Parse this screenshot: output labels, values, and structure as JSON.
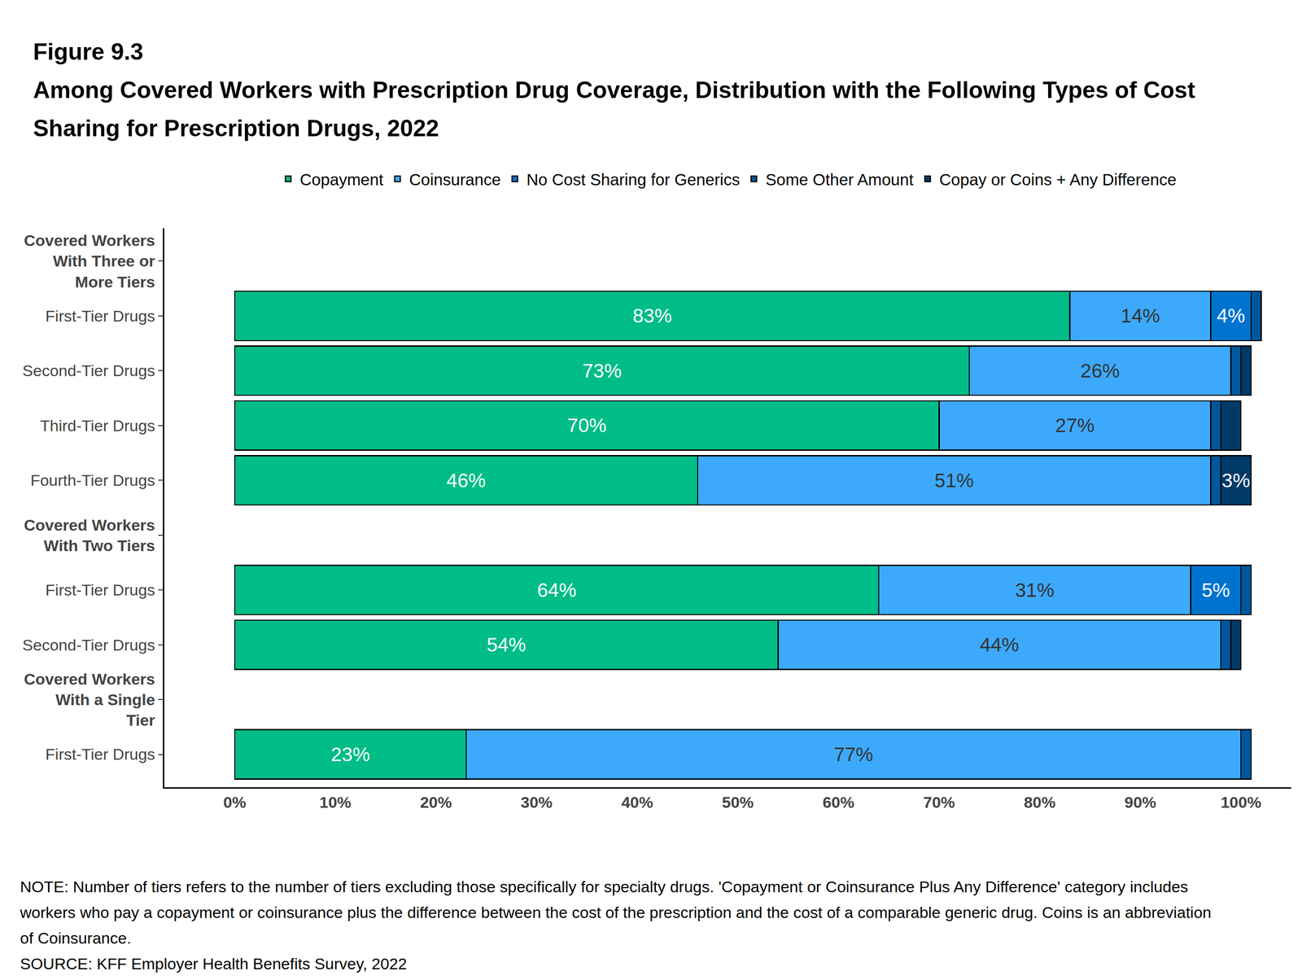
{
  "chart_data": {
    "type": "bar",
    "title": "Figure 9.3",
    "subtitle": "Among Covered Workers with Prescription Drug Coverage, Distribution with the Following Types of Cost Sharing for Prescription Drugs, 2022",
    "annotations": [
      "NOTE: Number of tiers refers to the number of tiers excluding those specifically for specialty drugs. 'Copayment or Coinsurance Plus Any Difference' category includes workers who pay a copayment or coinsurance plus the difference between the cost of the prescription and the cost of a comparable generic drug.  Coins is an abbreviation of Coinsurance.",
      "SOURCE: KFF Employer Health Benefits Survey, 2022"
    ],
    "orientation": "horizontal",
    "stacked": true,
    "data_labels": true,
    "grid": false,
    "legend": "top",
    "categories": [
      "Covered Workers With Three or More Tiers",
      "First-Tier Drugs",
      "Second-Tier Drugs",
      "Third-Tier Drugs",
      "Fourth-Tier Drugs",
      "Covered Workers With Two Tiers",
      "First-Tier Drugs",
      "Second-Tier Drugs",
      "Covered Workers With a Single Tier",
      "First-Tier Drugs"
    ],
    "series": [
      {
        "name": "Copayment",
        "color": "#00bc87",
        "values": [
          null,
          83,
          73,
          70,
          46,
          null,
          64,
          54,
          null,
          23
        ],
        "value_labels": [
          null,
          "83%",
          "73%",
          "70%",
          "46%",
          null,
          "64%",
          "54%",
          null,
          "23%"
        ]
      },
      {
        "name": "Coinsurance",
        "color": "#3da9fc",
        "values": [
          null,
          14,
          26,
          27,
          51,
          null,
          31,
          44,
          null,
          77
        ],
        "value_labels": [
          null,
          "14%",
          "26%",
          "27%",
          "51%",
          null,
          "31%",
          "44%",
          null,
          "77%"
        ]
      },
      {
        "name": "No Cost Sharing for Generics",
        "color": "#0073cf",
        "values": [
          null,
          4,
          null,
          null,
          null,
          null,
          5,
          null,
          null,
          null
        ],
        "value_labels": [
          null,
          "4%",
          null,
          null,
          null,
          null,
          "5%",
          null,
          null,
          null
        ]
      },
      {
        "name": "Some Other Amount",
        "color": "#00579c",
        "values": [
          null,
          1,
          1,
          1,
          1,
          null,
          1,
          1,
          null,
          1
        ],
        "value_labels": [
          null,
          null,
          null,
          null,
          null,
          null,
          null,
          null,
          null,
          null
        ]
      },
      {
        "name": "Copay or Coins + Any Difference",
        "color": "#003a66",
        "values": [
          null,
          null,
          1,
          2,
          3,
          null,
          null,
          1,
          null,
          null
        ],
        "value_labels": [
          null,
          null,
          null,
          null,
          "3%",
          null,
          null,
          null,
          null,
          null
        ]
      }
    ],
    "xlim": [
      -7,
      105
    ],
    "xticks": [
      {
        "value": 0,
        "label": "0%"
      },
      {
        "value": 10,
        "label": "10%"
      },
      {
        "value": 20,
        "label": "20%"
      },
      {
        "value": 30,
        "label": "30%"
      },
      {
        "value": 40,
        "label": "40%"
      },
      {
        "value": 50,
        "label": "50%"
      },
      {
        "value": 60,
        "label": "60%"
      },
      {
        "value": 70,
        "label": "70%"
      },
      {
        "value": 80,
        "label": "80%"
      },
      {
        "value": 90,
        "label": "90%"
      },
      {
        "value": 100,
        "label": "100%"
      }
    ]
  }
}
